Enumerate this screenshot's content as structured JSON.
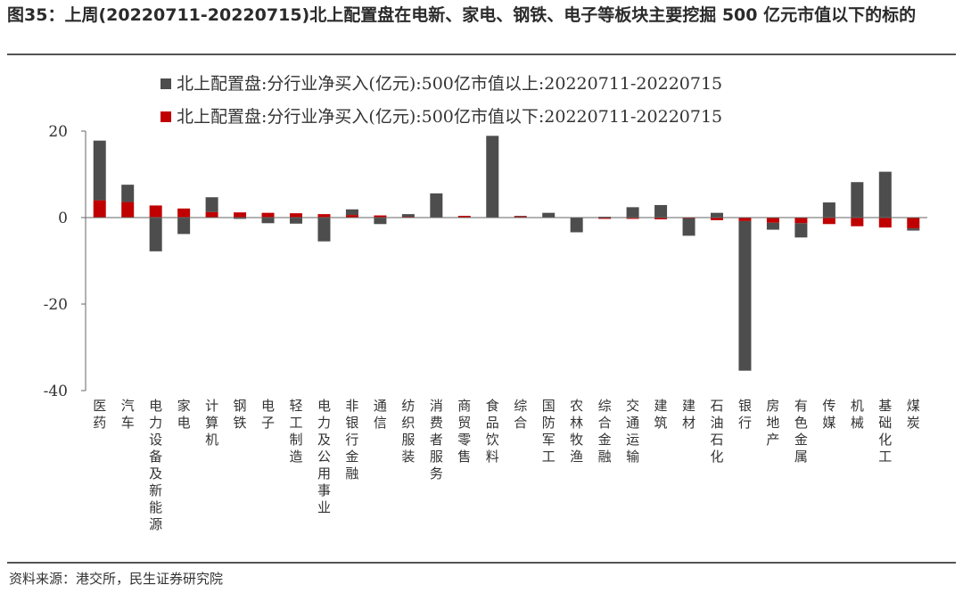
{
  "title": "图35：上周(20220711-20220715)北上配置盘在电新、家电、钢铁、电子等板块主要挖掘 500 亿元市值以下的标的",
  "source": "资料来源：港交所，民生证券研究院",
  "chart_data": {
    "type": "bar",
    "stacked": true,
    "categories": [
      "医药",
      "汽车",
      "电力设备及新能源",
      "家电",
      "计算机",
      "钢铁",
      "电子",
      "轻工制造",
      "电力及公用事业",
      "非银行金融",
      "通信",
      "纺织服装",
      "消费者服务",
      "商贸零售",
      "食品饮料",
      "综合",
      "国防军工",
      "农林牧渔",
      "综合金融",
      "交通运输",
      "建筑",
      "建材",
      "石油石化",
      "银行",
      "房地产",
      "有色金属",
      "传媒",
      "机械",
      "基础化工",
      "煤炭"
    ],
    "series": [
      {
        "name": "北上配置盘:分行业净买入(亿元):500亿市值以上:20220711-20220715",
        "color": "#4d4d4d",
        "values": [
          13.8,
          4.0,
          -7.8,
          -3.8,
          3.4,
          -0.3,
          -1.3,
          -1.4,
          -5.5,
          1.3,
          -1.5,
          0.6,
          5.5,
          -0.1,
          18.8,
          0.1,
          1.0,
          -3.3,
          0.2,
          2.4,
          2.9,
          -4.0,
          1.1,
          -34.6,
          -1.6,
          -3.3,
          3.5,
          8.2,
          10.6,
          -0.5
        ]
      },
      {
        "name": "北上配置盘:分行业净买入(亿元):500亿市值以下:20220711-20220715",
        "color": "#c00000",
        "values": [
          4.0,
          3.6,
          2.8,
          2.1,
          1.3,
          1.2,
          1.1,
          1.0,
          0.8,
          0.6,
          0.5,
          0.2,
          0.1,
          0.4,
          0.1,
          0.3,
          0.1,
          -0.1,
          -0.3,
          -0.3,
          -0.4,
          -0.2,
          -0.6,
          -0.8,
          -1.2,
          -1.3,
          -1.5,
          -2.0,
          -2.3,
          -2.5
        ]
      }
    ],
    "ylim": [
      -40,
      20
    ],
    "yticks": [
      20,
      0,
      -20,
      -40
    ],
    "legend_position": "top",
    "grid": false
  }
}
